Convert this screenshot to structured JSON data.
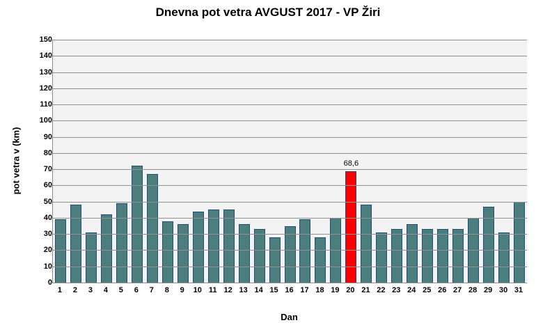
{
  "chart_data": {
    "type": "bar",
    "title": "Dnevna pot vetra AVGUST 2017 - VP Žiri",
    "xlabel": "Dan",
    "ylabel": "pot vetra  v (km)",
    "categories": [
      "1",
      "2",
      "3",
      "4",
      "5",
      "6",
      "7",
      "8",
      "9",
      "10",
      "11",
      "12",
      "13",
      "14",
      "15",
      "16",
      "17",
      "18",
      "19",
      "20",
      "21",
      "22",
      "23",
      "24",
      "25",
      "26",
      "27",
      "28",
      "29",
      "30",
      "31"
    ],
    "values": [
      39,
      48,
      31,
      42,
      49,
      72,
      67,
      38,
      36,
      44,
      45,
      45,
      36,
      33,
      28,
      35,
      39,
      28,
      40,
      68.6,
      48,
      31,
      33,
      36,
      33,
      33,
      33,
      40,
      47,
      31,
      50
    ],
    "ylim": [
      0,
      150
    ],
    "ytick_step": 10,
    "grid": true,
    "legend": false,
    "highlight": {
      "index": 19,
      "category": "20",
      "value": 68.6,
      "label": "68,6",
      "color": "#FF0000"
    },
    "colors": {
      "bar_fill": "#4C7E7D",
      "bar_border": "#1F4E79",
      "highlight_fill": "#FF0000",
      "plot_bg": "#F3F3F3",
      "gridline": "#909090",
      "axis_line": "#8C8C8C",
      "text": "#000000"
    }
  }
}
